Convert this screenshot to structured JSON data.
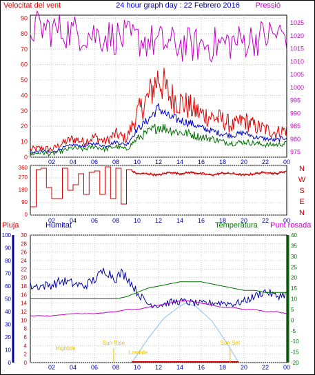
{
  "colors": {
    "wind": "#e00000",
    "wind_avg": "#0000c8",
    "gust": "#007000",
    "pressure": "#c000c0",
    "direction": "#d00000",
    "rain": "#d00000",
    "humidity": "#0000a0",
    "temperature": "#007000",
    "dewpoint": "#c000c0",
    "solar": "#a0c8f0",
    "sun_label": "#e0c000",
    "grid": "#c8c8c8",
    "border": "#000000",
    "top_title": "#0000c0"
  },
  "header": {
    "left_title": "Velocitat del vent",
    "center_title": "24 hour graph day : 22 Febrero 2016",
    "right_title": "Pressió"
  },
  "legend2": {
    "rain": "Pluja",
    "humidity": "Humitat",
    "temperature": "Temperatura",
    "dewpoint": "Punt rosada"
  },
  "direction_letters": [
    "N",
    "W",
    "S",
    "E",
    "N"
  ],
  "sun_labels": [
    "Sun Rise",
    "Sun Set",
    "Lowtide",
    "Hightide"
  ],
  "x_ticks": [
    "02",
    "04",
    "06",
    "08",
    "10",
    "12",
    "14",
    "16",
    "18",
    "20",
    "22",
    "00"
  ],
  "y_ticks": {
    "wind": [
      "0",
      "10",
      "20",
      "30",
      "40",
      "50",
      "60",
      "70",
      "80",
      "90"
    ],
    "pressure": [
      "975",
      "980",
      "985",
      "990",
      "995",
      "1000",
      "1005",
      "1010",
      "1015",
      "1020",
      "1025"
    ],
    "direction": [
      "0",
      "90",
      "180",
      "270",
      "360"
    ],
    "rain": [
      "0",
      "2",
      "4",
      "6",
      "8",
      "10",
      "12",
      "14",
      "16",
      "18",
      "20",
      "22",
      "24",
      "26",
      "28",
      "30"
    ],
    "humidity": [
      "0",
      "10",
      "20",
      "30",
      "40",
      "50",
      "60",
      "70",
      "80",
      "90",
      "100"
    ],
    "temperature": [
      "-20",
      "-15",
      "-10",
      "-5",
      "0",
      "5",
      "10",
      "15",
      "20",
      "25",
      "30",
      "35",
      "40"
    ]
  },
  "chart_data": [
    {
      "type": "line",
      "title": "24 hour graph day : 22 Febrero 2016",
      "ylabel": "Velocitat del vent",
      "ylabel_right": "Pressió",
      "x_unit": "hour",
      "xlim": [
        0,
        24
      ],
      "ylim": [
        0,
        92
      ],
      "ylim_right": [
        973,
        1028
      ],
      "series": [
        {
          "axis": "left",
          "x": [
            0,
            1,
            2,
            3,
            4,
            5,
            6,
            7,
            8,
            9,
            10,
            11,
            12,
            13,
            14,
            15,
            16,
            17,
            18,
            19,
            20,
            21,
            22,
            23,
            24
          ],
          "values": [
            5,
            6,
            5,
            9,
            12,
            10,
            13,
            10,
            15,
            12,
            28,
            38,
            52,
            40,
            36,
            32,
            28,
            26,
            24,
            20,
            24,
            20,
            18,
            16,
            18
          ]
        },
        {
          "axis": "left",
          "x": [
            0,
            1,
            2,
            3,
            4,
            5,
            6,
            7,
            8,
            9,
            10,
            11,
            12,
            13,
            14,
            15,
            16,
            17,
            18,
            19,
            20,
            21,
            22,
            23,
            24
          ],
          "values": [
            3,
            4,
            3,
            6,
            8,
            7,
            9,
            7,
            10,
            8,
            18,
            24,
            32,
            26,
            24,
            22,
            19,
            17,
            15,
            14,
            16,
            13,
            12,
            11,
            13
          ]
        },
        {
          "axis": "left",
          "x": [
            0,
            1,
            2,
            3,
            4,
            5,
            6,
            7,
            8,
            9,
            10,
            11,
            12,
            13,
            14,
            15,
            16,
            17,
            18,
            19,
            20,
            21,
            22,
            23,
            24
          ],
          "values": [
            2,
            3,
            2,
            4,
            6,
            5,
            7,
            5,
            7,
            5,
            12,
            16,
            20,
            18,
            16,
            15,
            13,
            12,
            10,
            9,
            10,
            9,
            8,
            8,
            9
          ]
        },
        {
          "axis": "right",
          "x": [
            0,
            1,
            2,
            3,
            4,
            5,
            6,
            7,
            8,
            9,
            10,
            11,
            12,
            13,
            14,
            15,
            16,
            17,
            18,
            19,
            20,
            21,
            22,
            23,
            24
          ],
          "values": [
            1023,
            1023,
            1022.5,
            1022,
            1021.5,
            1021,
            1020.5,
            1020,
            1019.5,
            1019,
            1018.5,
            1018,
            1017.5,
            1017,
            1016.5,
            1016.5,
            1016.5,
            1016.5,
            1017,
            1017.5,
            1018,
            1019,
            1020,
            1020.5,
            1020.5
          ]
        }
      ]
    },
    {
      "type": "line",
      "x_unit": "hour",
      "xlim": [
        0,
        24
      ],
      "ylim": [
        0,
        360
      ],
      "series": [
        {
          "x": [
            0,
            0.5,
            0.55,
            1,
            1.5,
            2,
            2.5,
            3,
            3.5,
            4,
            4.5,
            5,
            5.5,
            6,
            6.5,
            7,
            7.5,
            8,
            8.5,
            9,
            9.5,
            10,
            11,
            12,
            13,
            14,
            15,
            16,
            17,
            18,
            19,
            20,
            21,
            22,
            23,
            24
          ],
          "values": [
            60,
            60,
            330,
            340,
            200,
            120,
            120,
            340,
            180,
            220,
            300,
            150,
            310,
            320,
            150,
            350,
            120,
            340,
            80,
            330,
            320,
            300,
            300,
            290,
            310,
            300,
            310,
            300,
            290,
            305,
            300,
            290,
            300,
            310,
            300,
            320
          ]
        }
      ]
    },
    {
      "type": "line",
      "ylabel": "Pluja",
      "x_unit": "hour",
      "xlim": [
        0,
        24
      ],
      "ylim_rain": [
        0,
        30
      ],
      "ylim_humidity": [
        0,
        100
      ],
      "ylim_temperature": [
        -20,
        40
      ],
      "series": [
        {
          "axis": "humidity",
          "x": [
            0,
            1,
            2,
            3,
            4,
            5,
            6,
            7,
            8,
            8.5,
            9,
            10,
            11,
            12,
            13,
            14,
            15,
            16,
            17,
            18,
            19,
            20,
            21,
            22,
            23,
            24
          ],
          "values": [
            60,
            60,
            61,
            64,
            62,
            60,
            65,
            73,
            66,
            70,
            68,
            55,
            46,
            45,
            47,
            48,
            47,
            46,
            47,
            47,
            46,
            48,
            52,
            56,
            52,
            54
          ]
        },
        {
          "axis": "temperature",
          "x": [
            0,
            2,
            4,
            6,
            8,
            9,
            10,
            11,
            12,
            13,
            14,
            15,
            16,
            17,
            18,
            19,
            20,
            21,
            22,
            23,
            24
          ],
          "values": [
            10,
            10,
            10,
            10,
            10,
            11,
            13,
            15,
            16,
            17,
            18,
            18,
            18,
            17,
            16,
            15,
            14,
            14,
            13,
            13,
            13
          ]
        },
        {
          "axis": "temperature",
          "x": [
            0,
            2,
            4,
            6,
            8,
            9,
            10,
            11,
            12,
            13,
            14,
            15,
            16,
            17,
            18,
            19,
            20,
            21,
            22,
            23,
            24
          ],
          "values": [
            2,
            2,
            3,
            3,
            4,
            5,
            5,
            6,
            7,
            8,
            9,
            9,
            8,
            7,
            6,
            6,
            5,
            5,
            4,
            4,
            3
          ]
        },
        {
          "axis": "rain",
          "x": [
            0,
            24
          ],
          "values": [
            0,
            0
          ]
        },
        {
          "axis": "solar",
          "x": [
            9.5,
            11,
            12.5,
            14,
            14.5,
            15.5,
            17,
            18.5,
            19.5
          ],
          "values": [
            0,
            8,
            15,
            19,
            20,
            19,
            14,
            6,
            0
          ]
        }
      ]
    }
  ]
}
